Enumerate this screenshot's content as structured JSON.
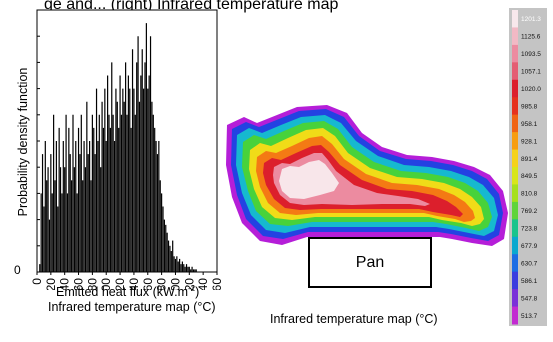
{
  "header": {
    "caption_fragment": "gе and... (right) Infrared temperature map"
  },
  "chart_data": [
    {
      "type": "bar",
      "title": "",
      "xlabel": "Emitted heat flux (kW.m",
      "xlabel_superscript": "-2",
      "xlabel_close": ")",
      "xsubtitle": "Infrared temperature map (°C)",
      "ylabel": "Probability density function",
      "ytick_labels": [
        "0"
      ],
      "xticks": [
        0,
        20,
        40,
        60,
        80,
        100,
        120,
        140,
        160,
        180,
        200,
        220,
        240,
        260
      ],
      "xlim": [
        0,
        260
      ],
      "ylim": [
        0,
        1
      ],
      "grid": false,
      "x": [
        4,
        6,
        8,
        10,
        12,
        14,
        16,
        18,
        20,
        22,
        24,
        26,
        28,
        30,
        32,
        34,
        36,
        38,
        40,
        42,
        44,
        46,
        48,
        50,
        52,
        54,
        56,
        58,
        60,
        62,
        64,
        66,
        68,
        70,
        72,
        74,
        76,
        78,
        80,
        82,
        84,
        86,
        88,
        90,
        92,
        94,
        96,
        98,
        100,
        102,
        104,
        106,
        108,
        110,
        112,
        114,
        116,
        118,
        120,
        122,
        124,
        126,
        128,
        130,
        132,
        134,
        136,
        138,
        140,
        142,
        144,
        146,
        148,
        150,
        152,
        154,
        156,
        158,
        160,
        162,
        164,
        166,
        168,
        170,
        172,
        174,
        176,
        178,
        180,
        182,
        184,
        186,
        188,
        190,
        192,
        194,
        196,
        198,
        200,
        202,
        204,
        206,
        208,
        210,
        212,
        214,
        216,
        218,
        220,
        222,
        224,
        226,
        228,
        230,
        232
      ],
      "y": [
        0.03,
        0.3,
        0.45,
        0.25,
        0.5,
        0.35,
        0.4,
        0.2,
        0.45,
        0.3,
        0.6,
        0.35,
        0.5,
        0.25,
        0.55,
        0.4,
        0.3,
        0.5,
        0.4,
        0.6,
        0.3,
        0.55,
        0.45,
        0.35,
        0.6,
        0.4,
        0.5,
        0.3,
        0.55,
        0.45,
        0.6,
        0.35,
        0.5,
        0.4,
        0.65,
        0.45,
        0.5,
        0.35,
        0.6,
        0.55,
        0.45,
        0.7,
        0.5,
        0.6,
        0.4,
        0.65,
        0.55,
        0.7,
        0.5,
        0.75,
        0.6,
        0.55,
        0.8,
        0.6,
        0.5,
        0.7,
        0.65,
        0.55,
        0.75,
        0.6,
        0.7,
        0.65,
        0.8,
        0.6,
        0.75,
        0.7,
        0.55,
        0.85,
        0.7,
        0.6,
        0.8,
        0.9,
        0.65,
        0.75,
        0.85,
        0.7,
        0.8,
        0.95,
        0.7,
        0.75,
        0.9,
        0.65,
        0.6,
        0.55,
        0.5,
        0.45,
        0.5,
        0.35,
        0.3,
        0.25,
        0.2,
        0.18,
        0.15,
        0.12,
        0.1,
        0.08,
        0.12,
        0.06,
        0.05,
        0.06,
        0.04,
        0.05,
        0.03,
        0.04,
        0.03,
        0.02,
        0.03,
        0.02,
        0.02,
        0.01,
        0.02,
        0.01,
        0.01,
        0.01,
        0.0
      ]
    },
    {
      "type": "heatmap",
      "title": "",
      "caption": "Infrared temperature map (°C)",
      "annotation": "Pan",
      "colorbar_ticks": [
        "1201.3",
        "1125.6",
        "1093.5",
        "1057.1",
        "1020.0",
        "985.8",
        "958.1",
        "928.1",
        "891.4",
        "849.5",
        "810.8",
        "769.2",
        "723.8",
        "677.9",
        "630.7",
        "586.1",
        "547.8",
        "513.7"
      ],
      "colorbar_colors": [
        "#f8e8ec",
        "#f2b9c5",
        "#ec8ba0",
        "#e45d73",
        "#dc1f2c",
        "#e6311d",
        "#f06414",
        "#f79d11",
        "#f5d21a",
        "#d8e619",
        "#a6e01b",
        "#5fd43a",
        "#19c48c",
        "#0aa8cf",
        "#1b6de4",
        "#3a3ddf",
        "#7a2fd8",
        "#c22ad1"
      ]
    }
  ]
}
